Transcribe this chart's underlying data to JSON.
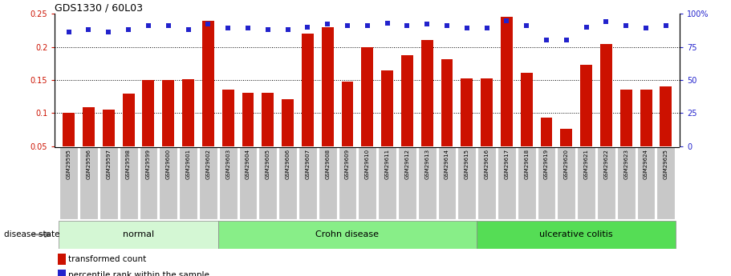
{
  "title": "GDS1330 / 60L03",
  "samples": [
    "GSM29595",
    "GSM29596",
    "GSM29597",
    "GSM29598",
    "GSM29599",
    "GSM29600",
    "GSM29601",
    "GSM29602",
    "GSM29603",
    "GSM29604",
    "GSM29605",
    "GSM29606",
    "GSM29607",
    "GSM29608",
    "GSM29609",
    "GSM29610",
    "GSM29611",
    "GSM29612",
    "GSM29613",
    "GSM29614",
    "GSM29615",
    "GSM29616",
    "GSM29617",
    "GSM29618",
    "GSM29619",
    "GSM29620",
    "GSM29621",
    "GSM29622",
    "GSM29623",
    "GSM29624",
    "GSM29625"
  ],
  "red_values": [
    0.101,
    0.109,
    0.105,
    0.13,
    0.15,
    0.15,
    0.151,
    0.24,
    0.135,
    0.131,
    0.131,
    0.121,
    0.22,
    0.23,
    0.148,
    0.2,
    0.165,
    0.188,
    0.21,
    0.182,
    0.152,
    0.153,
    0.245,
    0.161,
    0.093,
    0.076,
    0.173,
    0.205,
    0.135,
    0.136,
    0.14
  ],
  "blue_values": [
    86,
    88,
    86,
    88,
    91,
    91,
    88,
    92,
    89,
    89,
    88,
    88,
    90,
    92,
    91,
    91,
    93,
    91,
    92,
    91,
    89,
    89,
    95,
    91,
    80,
    80,
    90,
    94,
    91,
    89,
    91
  ],
  "groups": [
    {
      "label": "normal",
      "start": 0,
      "end": 7,
      "color": "#d4f7d4"
    },
    {
      "label": "Crohn disease",
      "start": 8,
      "end": 20,
      "color": "#88ee88"
    },
    {
      "label": "ulcerative colitis",
      "start": 21,
      "end": 30,
      "color": "#55dd55"
    }
  ],
  "ylim_left": [
    0.05,
    0.25
  ],
  "ylim_right": [
    0,
    100
  ],
  "bar_color": "#cc1100",
  "dot_color": "#2222cc",
  "background_color": "#ffffff",
  "disease_label": "disease state",
  "legend_bar": "transformed count",
  "legend_dot": "percentile rank within the sample",
  "yticks_left": [
    0.05,
    0.1,
    0.15,
    0.2,
    0.25
  ],
  "ytick_labels_left": [
    "0.05",
    "0.1",
    "0.15",
    "0.2",
    "0.25"
  ],
  "yticks_right": [
    0,
    25,
    50,
    75,
    100
  ],
  "ytick_labels_right": [
    "0",
    "25",
    "50",
    "75",
    "100%"
  ],
  "hgrid_lines": [
    0.1,
    0.15,
    0.2
  ],
  "bar_width": 0.6,
  "dot_size": 18
}
